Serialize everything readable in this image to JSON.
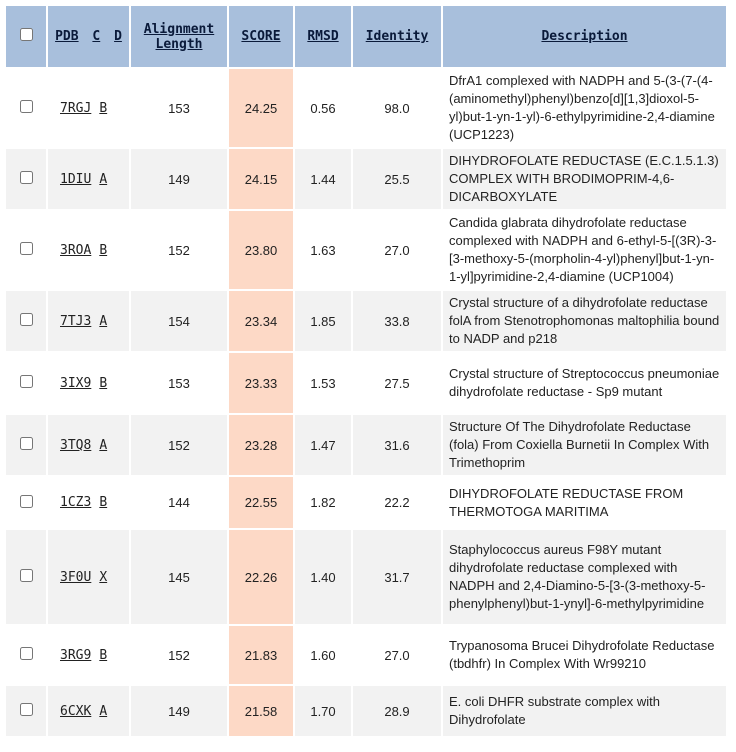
{
  "header": {
    "pdb": "PDB",
    "c": "C",
    "d": "D",
    "alignment_line1": "Alignment",
    "alignment_line2": "Length",
    "score": "SCORE",
    "rmsd": "RMSD",
    "identity": "Identity",
    "description": "Description"
  },
  "rows": [
    {
      "pdb": "7RGJ",
      "chain": "B",
      "length": "153",
      "score": "24.25",
      "rmsd": "0.56",
      "identity": "98.0",
      "description": "DfrA1 complexed with NADPH and 5-(3-(7-(4-(aminomethyl)phenyl)benzo[d][1,3]dioxol-5-yl)but-1-yn-1-yl)-6-ethylpyrimidine-2,4-diamine (UCP1223)"
    },
    {
      "pdb": "1DIU",
      "chain": "A",
      "length": "149",
      "score": "24.15",
      "rmsd": "1.44",
      "identity": "25.5",
      "description": "DIHYDROFOLATE REDUCTASE (E.C.1.5.1.3) COMPLEX WITH BRODIMOPRIM-4,6-DICARBOXYLATE"
    },
    {
      "pdb": "3ROA",
      "chain": "B",
      "length": "152",
      "score": "23.80",
      "rmsd": "1.63",
      "identity": "27.0",
      "description": "Candida glabrata dihydrofolate reductase complexed with NADPH and 6-ethyl-5-[(3R)-3-[3-methoxy-5-(morpholin-4-yl)phenyl]but-1-yn-1-yl]pyrimidine-2,4-diamine (UCP1004)"
    },
    {
      "pdb": "7TJ3",
      "chain": "A",
      "length": "154",
      "score": "23.34",
      "rmsd": "1.85",
      "identity": "33.8",
      "description": "Crystal structure of a dihydrofolate reductase folA from Stenotrophomonas maltophilia bound to NADP and p218"
    },
    {
      "pdb": "3IX9",
      "chain": "B",
      "length": "153",
      "score": "23.33",
      "rmsd": "1.53",
      "identity": "27.5",
      "description": "Crystal structure of Streptococcus pneumoniae dihydrofolate reductase - Sp9 mutant"
    },
    {
      "pdb": "3TQ8",
      "chain": "A",
      "length": "152",
      "score": "23.28",
      "rmsd": "1.47",
      "identity": "31.6",
      "description": "Structure Of The Dihydrofolate Reductase (fola) From Coxiella Burnetii In Complex With Trimethoprim"
    },
    {
      "pdb": "1CZ3",
      "chain": "B",
      "length": "144",
      "score": "22.55",
      "rmsd": "1.82",
      "identity": "22.2",
      "description": "DIHYDROFOLATE REDUCTASE FROM THERMOTOGA MARITIMA"
    },
    {
      "pdb": "3F0U",
      "chain": "X",
      "length": "145",
      "score": "22.26",
      "rmsd": "1.40",
      "identity": "31.7",
      "description": "Staphylococcus aureus F98Y mutant dihydrofolate reductase complexed with NADPH and 2,4-Diamino-5-[3-(3-methoxy-5-phenylphenyl)but-1-ynyl]-6-methylpyrimidine"
    },
    {
      "pdb": "3RG9",
      "chain": "B",
      "length": "152",
      "score": "21.83",
      "rmsd": "1.60",
      "identity": "27.0",
      "description": "Trypanosoma Brucei Dihydrofolate Reductase (tbdhfr) In Complex With Wr99210"
    },
    {
      "pdb": "6CXK",
      "chain": "A",
      "length": "149",
      "score": "21.58",
      "rmsd": "1.70",
      "identity": "28.9",
      "description": "E. coli DHFR substrate complex with Dihydrofolate"
    }
  ]
}
